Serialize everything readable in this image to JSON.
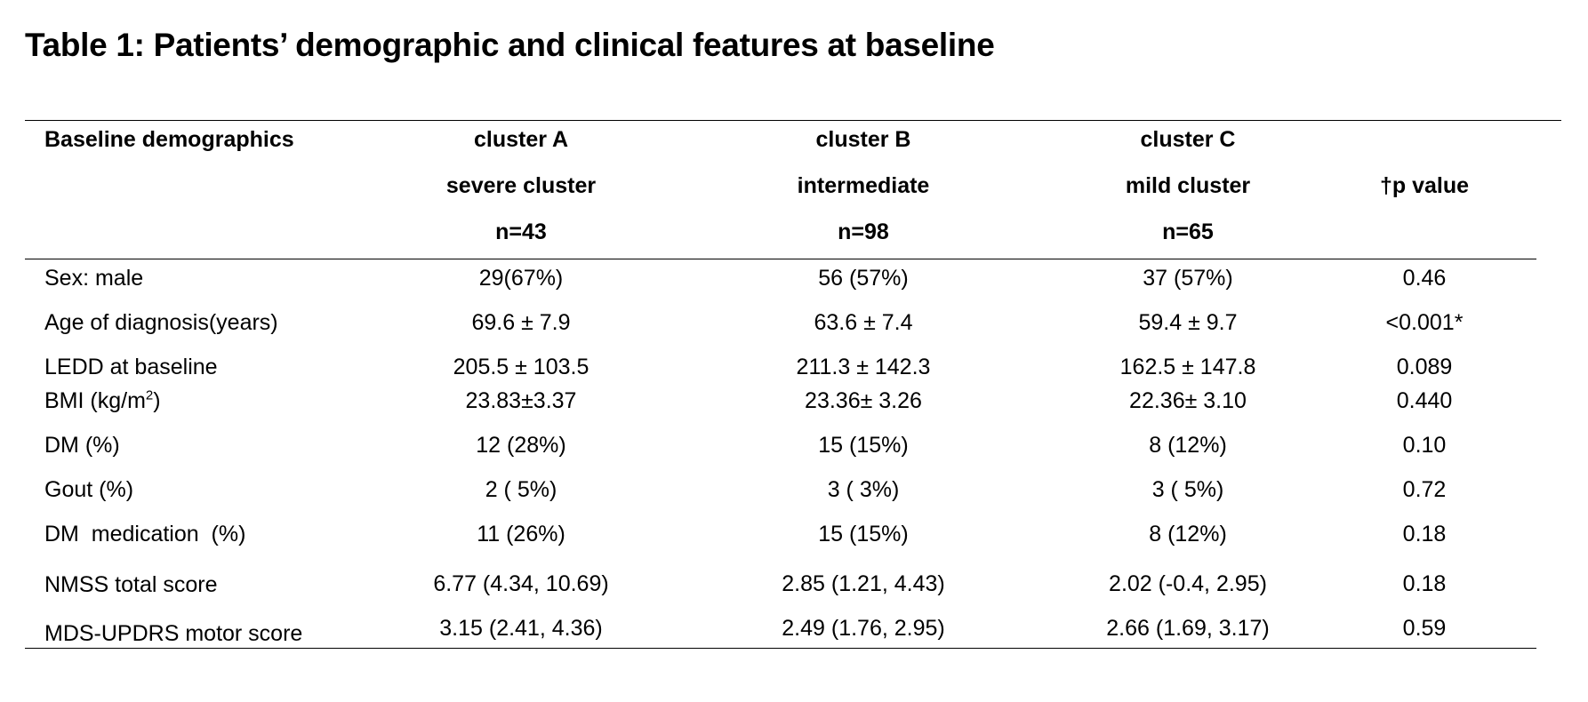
{
  "title": "Table 1: Patients’ demographic and clinical features at baseline",
  "header": {
    "label": "Baseline demographics",
    "cluster_a": [
      "cluster A",
      "severe cluster",
      "n=43"
    ],
    "cluster_b": [
      "cluster B",
      "intermediate",
      "n=98"
    ],
    "cluster_c": [
      "cluster C",
      "mild cluster",
      "n=65"
    ],
    "p_value": "†p value"
  },
  "rows": [
    {
      "label": "Sex: male",
      "a": "29(67%)",
      "b": "56 (57%)",
      "c": "37 (57%)",
      "p": "0.46"
    },
    {
      "label": "Age of diagnosis(years)",
      "a": "69.6  ± 7.9",
      "b": "63.6  ± 7.4",
      "c": "59.4 ± 9.7",
      "p": "<0.001*"
    },
    {
      "label": "LEDD at baseline",
      "a": "205.5  ± 103.5",
      "b": "211.3 ± 142.3",
      "c": "162.5 ± 147.8",
      "p": "0.089"
    },
    {
      "label_main": "BMI (kg/m",
      "label_sup": "2",
      "label_end": ")",
      "a": "23.83±3.37",
      "b": "23.36± 3.26",
      "c": "22.36± 3.10",
      "p": "0.440"
    },
    {
      "label": "DM (%)",
      "a": "12 (28%)",
      "b": "15 (15%)",
      "c": "8 (12%)",
      "p": "0.10"
    },
    {
      "label": "Gout (%)",
      "a": "2 ( 5%)",
      "b": "3 ( 3%)",
      "c": "3 ( 5%)",
      "p": "0.72"
    },
    {
      "label": "DM  medication  (%)",
      "a": "11 (26%)",
      "b": "15 (15%)",
      "c": "8 (12%)",
      "p": "0.18"
    },
    {
      "label": "NMSS total score",
      "a": "6.77 (4.34, 10.69)",
      "b": "2.85 (1.21, 4.43)",
      "c": "2.02 (-0.4, 2.95)",
      "p": "0.18"
    },
    {
      "label": "MDS-UPDRS motor score",
      "a": "3.15 (2.41, 4.36)",
      "b": "2.49 (1.76, 2.95)",
      "c": "2.66 (1.69, 3.17)",
      "p": "0.59"
    }
  ]
}
